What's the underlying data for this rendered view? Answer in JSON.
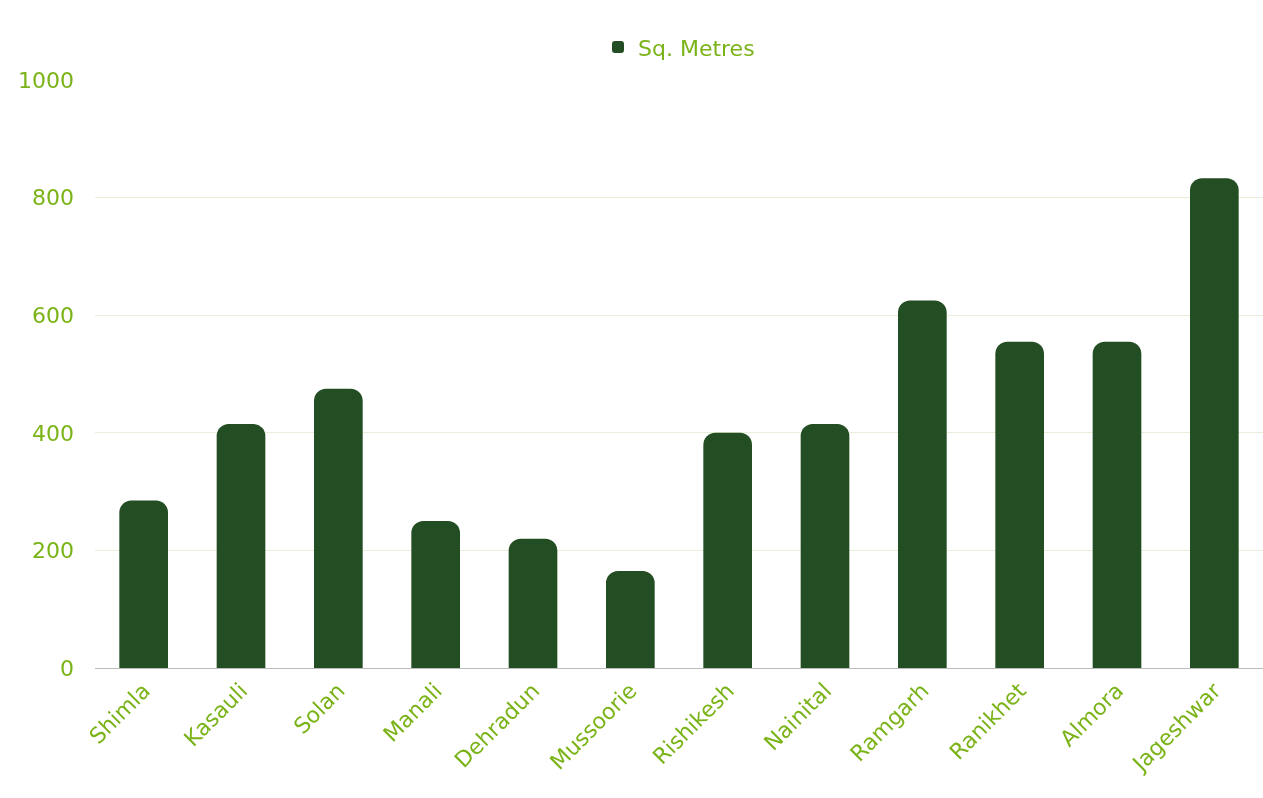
{
  "chart_data": {
    "type": "bar",
    "categories": [
      "Shimla",
      "Kasauli",
      "Solan",
      "Manali",
      "Dehradun",
      "Mussoorie",
      "Rishikesh",
      "Nainital",
      "Ramgarh",
      "Ranikhet",
      "Almora",
      "Jageshwar"
    ],
    "series": [
      {
        "name": "Sq. Metres",
        "color": "#234d22",
        "values": [
          285,
          415,
          475,
          250,
          220,
          165,
          400,
          415,
          625,
          555,
          555,
          833
        ]
      }
    ],
    "ylim": [
      0,
      1000
    ],
    "yticks": [
      0,
      200,
      400,
      600,
      800,
      1000
    ],
    "grid": "y",
    "legend": "top"
  }
}
